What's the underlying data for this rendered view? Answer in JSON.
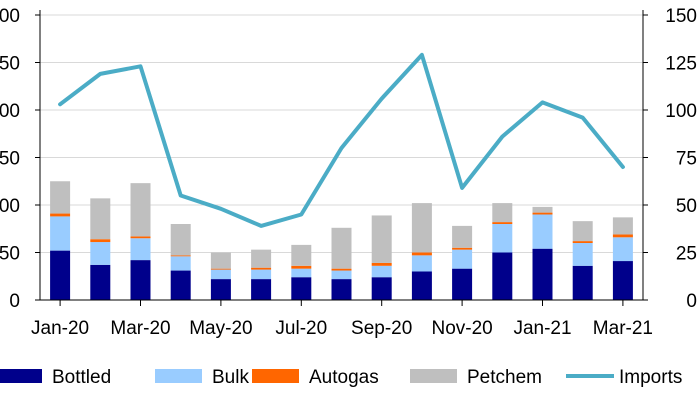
{
  "chart_data": {
    "type": "bar",
    "stacked": true,
    "categories": [
      "Jan-20",
      "Feb-20",
      "Mar-20",
      "Apr-20",
      "May-20",
      "Jun-20",
      "Jul-20",
      "Aug-20",
      "Sep-20",
      "Oct-20",
      "Nov-20",
      "Dec-20",
      "Jan-21",
      "Feb-21",
      "Mar-21"
    ],
    "x_tick_labels": [
      "Jan-20",
      "Mar-20",
      "May-20",
      "Jul-20",
      "Sep-20",
      "Nov-20",
      "Jan-21",
      "Mar-21"
    ],
    "series": [
      {
        "name": "Bottled",
        "color": "#00008B",
        "values": [
          52,
          37,
          42,
          31,
          22,
          22,
          24,
          22,
          24,
          30,
          33,
          50,
          54,
          36,
          41
        ]
      },
      {
        "name": "Bulk",
        "color": "#99CCFF",
        "values": [
          36,
          24,
          23,
          15,
          10,
          10,
          9,
          9,
          12,
          17,
          20,
          30,
          36,
          24,
          25
        ]
      },
      {
        "name": "Autogas",
        "color": "#FF6600",
        "values": [
          3,
          3,
          2,
          1,
          1,
          2,
          3,
          2,
          3,
          3,
          2,
          2,
          2,
          2,
          3
        ]
      },
      {
        "name": "Petchem",
        "color": "#BFBFBF",
        "values": [
          34,
          43,
          56,
          33,
          17,
          19,
          22,
          43,
          50,
          52,
          23,
          20,
          6,
          21,
          18
        ]
      }
    ],
    "line_series": {
      "name": "Imports",
      "axis": "right",
      "color": "#4BACC6",
      "values": [
        103,
        119,
        123,
        55,
        48,
        39,
        45,
        80,
        106,
        129,
        59,
        86,
        104,
        96,
        70
      ]
    },
    "y_left": {
      "ticks": [
        "0",
        "50",
        "100",
        "150",
        "200",
        "250",
        "300"
      ],
      "tick_labels": [
        "0",
        "50",
        "00",
        "50",
        "00",
        "50",
        "00"
      ],
      "ylim": [
        0,
        300
      ]
    },
    "y_right": {
      "ticks": [
        "0",
        "25",
        "50",
        "75",
        "100",
        "125",
        "150"
      ],
      "tick_labels": [
        "0",
        "25",
        "50",
        "75",
        "100",
        "125",
        "150"
      ],
      "ylim": [
        0,
        150
      ]
    },
    "legend": {
      "position": "bottom",
      "items": [
        "Bottled",
        "Bulk",
        "Autogas",
        "Petchem",
        "Imports"
      ]
    },
    "grid": "horizontal"
  }
}
